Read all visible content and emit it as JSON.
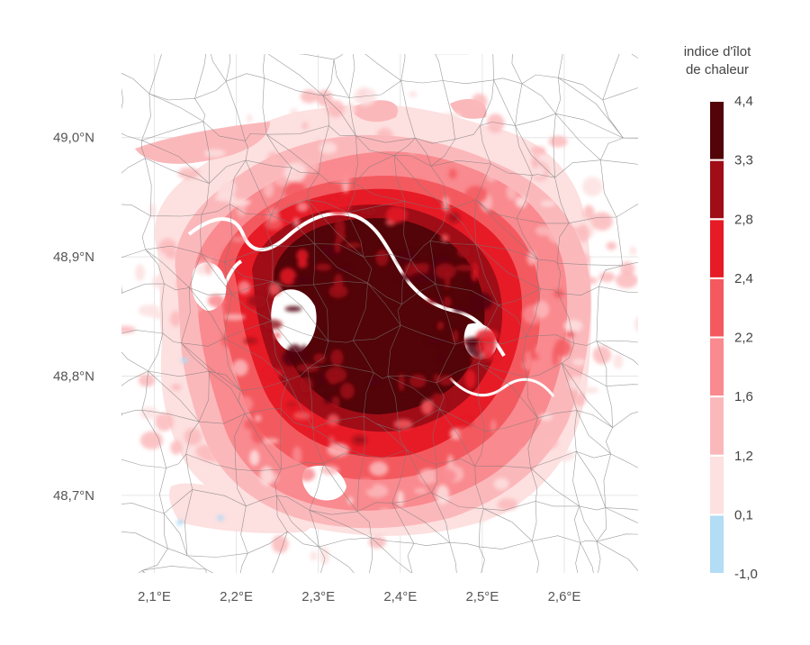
{
  "map": {
    "lon_ticks": [
      "2,1°E",
      "2,2°E",
      "2,3°E",
      "2,4°E",
      "2,5°E",
      "2,6°E"
    ],
    "lat_ticks": [
      "49,0°N",
      "48,9°N",
      "48,8°N",
      "48,7°N"
    ],
    "lon_range": [
      2.06,
      2.69
    ],
    "lat_range": [
      48.635,
      49.07
    ],
    "boundary_color": "#7a7a7a",
    "grid_color": "#e6e6e6"
  },
  "legend": {
    "title_line1": "indice d'îlot",
    "title_line2": "de chaleur",
    "bins": [
      {
        "label_low": "-1,0",
        "label_high": "0,1",
        "color": "#b3dcf5"
      },
      {
        "label_low": "0,1",
        "label_high": "1,2",
        "color": "#fde0e0"
      },
      {
        "label_low": "1,2",
        "label_high": "1,6",
        "color": "#fbb8bb"
      },
      {
        "label_low": "1,6",
        "label_high": "2,2",
        "color": "#f98a8f"
      },
      {
        "label_low": "2,2",
        "label_high": "2,4",
        "color": "#f35a5f"
      },
      {
        "label_low": "2,4",
        "label_high": "2,8",
        "color": "#e61b26"
      },
      {
        "label_low": "2,8",
        "label_high": "3,3",
        "color": "#a00d17"
      },
      {
        "label_low": "3,3",
        "label_high": "4,4",
        "color": "#520408"
      }
    ],
    "tick_labels": [
      "4,4",
      "3,3",
      "2,8",
      "2,4",
      "2,2",
      "1,6",
      "1,2",
      "0,1",
      "-1,0"
    ]
  }
}
